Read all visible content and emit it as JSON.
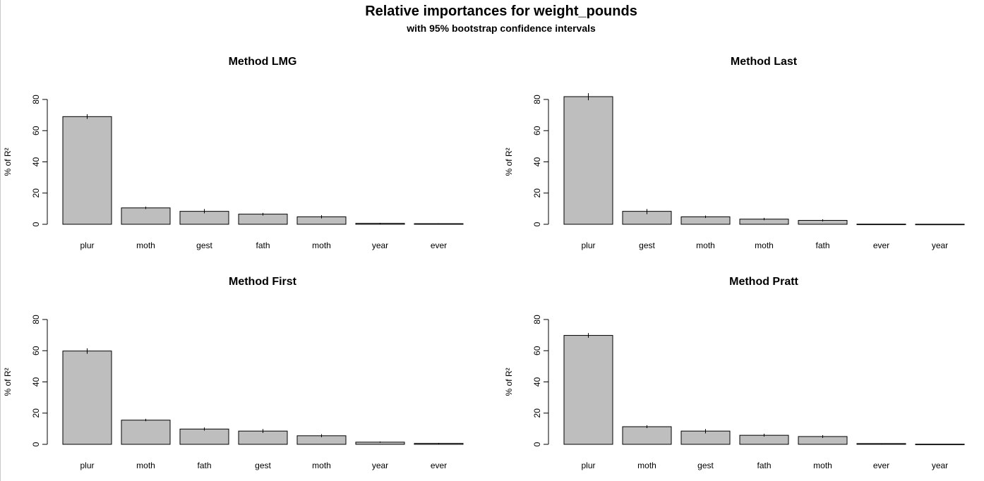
{
  "figure": {
    "title": "Relative importances for weight_pounds",
    "subtitle": "with 95% bootstrap confidence intervals"
  },
  "chart_data": [
    {
      "type": "bar",
      "title": "Method LMG",
      "ylabel": "% of R²",
      "ylim": [
        0,
        80
      ],
      "yticks": [
        0,
        20,
        40,
        60,
        80
      ],
      "categories": [
        "plur",
        "moth",
        "gest",
        "fath",
        "moth",
        "year",
        "ever"
      ],
      "values": [
        69,
        10.5,
        8.3,
        6.5,
        4.8,
        0.6,
        0.4
      ],
      "ci_lower": [
        67.5,
        9.8,
        7.0,
        5.6,
        3.8,
        0.3,
        0.2
      ],
      "ci_upper": [
        70.5,
        11.3,
        9.8,
        7.3,
        5.8,
        0.9,
        0.6
      ],
      "bar_color": "#bebebe"
    },
    {
      "type": "bar",
      "title": "Method Last",
      "ylabel": "% of R²",
      "ylim": [
        0,
        80
      ],
      "yticks": [
        0,
        20,
        40,
        60,
        80
      ],
      "categories": [
        "plur",
        "gest",
        "moth",
        "moth",
        "fath",
        "ever",
        "year"
      ],
      "values": [
        81.8,
        8.3,
        4.8,
        3.3,
        2.5,
        0.1,
        0.05
      ],
      "ci_lower": [
        79.5,
        6.5,
        4.0,
        2.6,
        1.8,
        0.0,
        0.0
      ],
      "ci_upper": [
        84.0,
        9.8,
        5.6,
        4.1,
        3.2,
        0.2,
        0.1
      ],
      "bar_color": "#bebebe"
    },
    {
      "type": "bar",
      "title": "Method First",
      "ylabel": "% of R²",
      "ylim": [
        0,
        80
      ],
      "yticks": [
        0,
        20,
        40,
        60,
        80
      ],
      "categories": [
        "plur",
        "moth",
        "fath",
        "gest",
        "moth",
        "year",
        "ever"
      ],
      "values": [
        59.8,
        15.5,
        9.8,
        8.5,
        5.5,
        1.4,
        0.6
      ],
      "ci_lower": [
        58.0,
        14.8,
        8.8,
        7.3,
        4.6,
        1.0,
        0.3
      ],
      "ci_upper": [
        61.5,
        16.3,
        10.8,
        9.8,
        6.5,
        1.8,
        0.9
      ],
      "bar_color": "#bebebe"
    },
    {
      "type": "bar",
      "title": "Method Pratt",
      "ylabel": "% of R²",
      "ylim": [
        0,
        80
      ],
      "yticks": [
        0,
        20,
        40,
        60,
        80
      ],
      "categories": [
        "plur",
        "moth",
        "gest",
        "fath",
        "moth",
        "ever",
        "year"
      ],
      "values": [
        69.8,
        11.3,
        8.5,
        5.8,
        5.0,
        0.5,
        0.1
      ],
      "ci_lower": [
        68.3,
        10.4,
        7.0,
        5.0,
        4.1,
        0.3,
        0.0
      ],
      "ci_upper": [
        71.3,
        12.2,
        9.8,
        6.8,
        5.9,
        0.7,
        0.2
      ],
      "bar_color": "#bebebe"
    }
  ]
}
